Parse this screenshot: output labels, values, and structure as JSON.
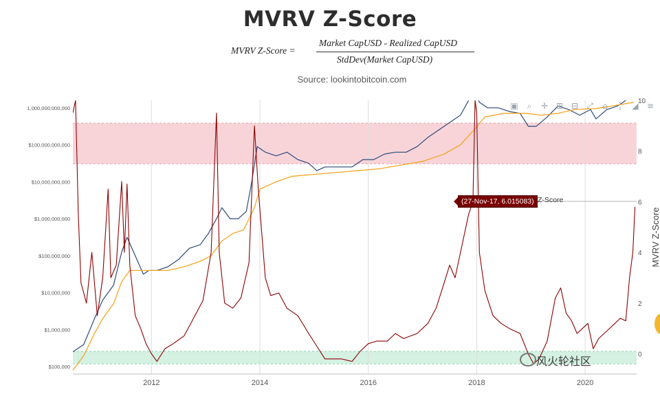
{
  "header": {
    "title": "MVRV Z-Score",
    "formula_lhs": "MVRV Z-Score  =",
    "formula_numerator": "Market Capᵤₛₑ - Realized Capᵤₛₑ",
    "formula_numerator_text": "Market CapUSD - Realized CapUSD",
    "formula_denominator_text": "StdDev(Market CapUSD)",
    "source": "Source: lookintobitcoin.com"
  },
  "toolbar": {
    "items": [
      {
        "name": "camera-icon",
        "glyph": "▣"
      },
      {
        "name": "zoom-icon",
        "glyph": "⌕"
      },
      {
        "name": "pan-icon",
        "glyph": "✛"
      },
      {
        "name": "zoom-in-icon",
        "glyph": "⊞"
      },
      {
        "name": "zoom-out-icon",
        "glyph": "⊟"
      },
      {
        "name": "autoscale-icon",
        "glyph": "⤢"
      },
      {
        "name": "reset-axes-icon",
        "glyph": "⌂"
      },
      {
        "name": "spike-lines-icon",
        "glyph": "╎"
      },
      {
        "name": "hover-compare-icon",
        "glyph": "◢"
      },
      {
        "name": "hover-closest-icon",
        "glyph": "≡"
      }
    ]
  },
  "tooltip": {
    "text": "(27-Nov-17, 6.015083)",
    "label": "Z-Score",
    "date": 2017.91,
    "value": 6.015083,
    "color": "#7a0000"
  },
  "watermark": "风火轮社区",
  "colors": {
    "market_cap": "#2b4a7a",
    "realized_cap": "#f5a623",
    "zscore": "#8b0000",
    "red_band": "#f7cdd2",
    "green_band": "#cdeedd",
    "grid": "#dddddd"
  },
  "chart_data": {
    "type": "line",
    "xlabel": "",
    "y_left_label": "",
    "y_right_label": "MVRV Z-Score",
    "x_range": [
      2010.55,
      2020.95
    ],
    "x_ticks": [
      2012,
      2014,
      2016,
      2018,
      2020
    ],
    "x_tick_labels": [
      "2012",
      "2014",
      "2016",
      "2018",
      "2020"
    ],
    "y_left_scale": "log",
    "y_left_range_log10": [
      4.8,
      12.2
    ],
    "y_left_ticks": [
      100000,
      1000000,
      10000000,
      100000000,
      1000000000,
      10000000000,
      100000000000,
      1000000000000
    ],
    "y_left_tick_labels": [
      "$100,000",
      "$1,000,000",
      "$10,000,000",
      "$100,000,000",
      "$1,000,000,000",
      "$10,000,000,000",
      "$100,000,000,000",
      "1,000,000,000,000"
    ],
    "y_right_range": [
      -0.8,
      10
    ],
    "y_right_ticks": [
      0,
      2,
      4,
      6,
      8,
      10
    ],
    "y_right_tick_labels": [
      "0",
      "2",
      "4",
      "6",
      "8",
      "10"
    ],
    "bands": [
      {
        "name": "red-zone",
        "axis": "right",
        "y0": 7.5,
        "y1": 9.1
      },
      {
        "name": "green-zone",
        "axis": "right",
        "y0": -0.4,
        "y1": 0.1
      }
    ],
    "series": [
      {
        "name": "Market Cap",
        "axis": "left",
        "points": [
          [
            2010.55,
            5.4
          ],
          [
            2010.75,
            5.6
          ],
          [
            2010.95,
            6.3
          ],
          [
            2011.1,
            6.8
          ],
          [
            2011.3,
            7.2
          ],
          [
            2011.45,
            8.1
          ],
          [
            2011.55,
            8.5
          ],
          [
            2011.7,
            8.0
          ],
          [
            2011.85,
            7.5
          ],
          [
            2011.95,
            7.6
          ],
          [
            2012.1,
            7.6
          ],
          [
            2012.3,
            7.7
          ],
          [
            2012.5,
            7.9
          ],
          [
            2012.7,
            8.2
          ],
          [
            2012.9,
            8.3
          ],
          [
            2013.05,
            8.6
          ],
          [
            2013.2,
            9.0
          ],
          [
            2013.3,
            9.3
          ],
          [
            2013.45,
            9.0
          ],
          [
            2013.6,
            9.0
          ],
          [
            2013.75,
            9.2
          ],
          [
            2013.85,
            10.0
          ],
          [
            2013.95,
            10.95
          ],
          [
            2014.1,
            10.8
          ],
          [
            2014.3,
            10.7
          ],
          [
            2014.5,
            10.8
          ],
          [
            2014.7,
            10.6
          ],
          [
            2014.9,
            10.5
          ],
          [
            2015.05,
            10.3
          ],
          [
            2015.2,
            10.4
          ],
          [
            2015.5,
            10.4
          ],
          [
            2015.7,
            10.4
          ],
          [
            2015.9,
            10.6
          ],
          [
            2016.1,
            10.6
          ],
          [
            2016.3,
            10.75
          ],
          [
            2016.5,
            10.8
          ],
          [
            2016.7,
            10.8
          ],
          [
            2016.9,
            10.95
          ],
          [
            2017.1,
            11.2
          ],
          [
            2017.3,
            11.4
          ],
          [
            2017.5,
            11.6
          ],
          [
            2017.7,
            11.8
          ],
          [
            2017.85,
            12.2
          ],
          [
            2017.95,
            12.5
          ],
          [
            2018.05,
            12.15
          ],
          [
            2018.2,
            12.0
          ],
          [
            2018.4,
            12.0
          ],
          [
            2018.6,
            11.9
          ],
          [
            2018.8,
            11.85
          ],
          [
            2018.95,
            11.5
          ],
          [
            2019.1,
            11.5
          ],
          [
            2019.3,
            11.75
          ],
          [
            2019.5,
            12.05
          ],
          [
            2019.7,
            11.95
          ],
          [
            2019.9,
            11.8
          ],
          [
            2020.1,
            11.95
          ],
          [
            2020.2,
            11.7
          ],
          [
            2020.4,
            11.95
          ],
          [
            2020.6,
            12.05
          ],
          [
            2020.75,
            12.2
          ],
          [
            2020.9,
            12.45
          ]
        ]
      },
      {
        "name": "Realized Cap",
        "axis": "left",
        "points": [
          [
            2010.55,
            4.9
          ],
          [
            2010.75,
            5.3
          ],
          [
            2010.95,
            5.9
          ],
          [
            2011.1,
            6.3
          ],
          [
            2011.3,
            6.7
          ],
          [
            2011.45,
            7.3
          ],
          [
            2011.6,
            7.6
          ],
          [
            2011.8,
            7.6
          ],
          [
            2012.0,
            7.6
          ],
          [
            2012.3,
            7.6
          ],
          [
            2012.6,
            7.7
          ],
          [
            2012.9,
            7.85
          ],
          [
            2013.1,
            8.0
          ],
          [
            2013.3,
            8.4
          ],
          [
            2013.5,
            8.6
          ],
          [
            2013.7,
            8.7
          ],
          [
            2013.9,
            9.3
          ],
          [
            2014.0,
            9.8
          ],
          [
            2014.3,
            10.0
          ],
          [
            2014.6,
            10.15
          ],
          [
            2015.0,
            10.2
          ],
          [
            2015.4,
            10.25
          ],
          [
            2015.8,
            10.3
          ],
          [
            2016.2,
            10.35
          ],
          [
            2016.6,
            10.45
          ],
          [
            2017.0,
            10.55
          ],
          [
            2017.4,
            10.75
          ],
          [
            2017.7,
            11.0
          ],
          [
            2017.95,
            11.4
          ],
          [
            2018.15,
            11.75
          ],
          [
            2018.5,
            11.85
          ],
          [
            2018.9,
            11.85
          ],
          [
            2019.2,
            11.8
          ],
          [
            2019.5,
            11.85
          ],
          [
            2019.8,
            11.95
          ],
          [
            2020.2,
            11.98
          ],
          [
            2020.5,
            12.05
          ],
          [
            2020.9,
            12.15
          ]
        ]
      },
      {
        "name": "Z-Score",
        "axis": "right",
        "points": [
          [
            2010.55,
            9.5
          ],
          [
            2010.6,
            10.0
          ],
          [
            2010.65,
            5.5
          ],
          [
            2010.7,
            2.8
          ],
          [
            2010.8,
            2.0
          ],
          [
            2010.9,
            4.0
          ],
          [
            2011.0,
            1.5
          ],
          [
            2011.1,
            3.0
          ],
          [
            2011.2,
            6.5
          ],
          [
            2011.25,
            3.0
          ],
          [
            2011.35,
            3.5
          ],
          [
            2011.45,
            6.8
          ],
          [
            2011.5,
            4.0
          ],
          [
            2011.55,
            6.7
          ],
          [
            2011.6,
            3.5
          ],
          [
            2011.7,
            1.5
          ],
          [
            2011.8,
            1.0
          ],
          [
            2011.9,
            0.4
          ],
          [
            2012.0,
            0.0
          ],
          [
            2012.1,
            -0.3
          ],
          [
            2012.25,
            0.2
          ],
          [
            2012.4,
            0.4
          ],
          [
            2012.6,
            0.7
          ],
          [
            2012.75,
            1.3
          ],
          [
            2012.95,
            2.1
          ],
          [
            2013.1,
            4.0
          ],
          [
            2013.2,
            9.5
          ],
          [
            2013.25,
            4.0
          ],
          [
            2013.35,
            2.0
          ],
          [
            2013.5,
            1.8
          ],
          [
            2013.65,
            2.2
          ],
          [
            2013.8,
            3.6
          ],
          [
            2013.9,
            9.0
          ],
          [
            2013.97,
            6.5
          ],
          [
            2014.1,
            3.0
          ],
          [
            2014.2,
            2.3
          ],
          [
            2014.35,
            2.4
          ],
          [
            2014.5,
            1.8
          ],
          [
            2014.7,
            1.5
          ],
          [
            2014.9,
            0.8
          ],
          [
            2015.05,
            0.3
          ],
          [
            2015.2,
            -0.2
          ],
          [
            2015.5,
            -0.2
          ],
          [
            2015.7,
            -0.3
          ],
          [
            2015.85,
            0.1
          ],
          [
            2016.0,
            0.4
          ],
          [
            2016.15,
            0.5
          ],
          [
            2016.35,
            0.5
          ],
          [
            2016.5,
            0.8
          ],
          [
            2016.65,
            0.6
          ],
          [
            2016.9,
            0.8
          ],
          [
            2017.1,
            1.2
          ],
          [
            2017.25,
            1.8
          ],
          [
            2017.4,
            2.8
          ],
          [
            2017.5,
            3.5
          ],
          [
            2017.6,
            3.0
          ],
          [
            2017.75,
            4.5
          ],
          [
            2017.85,
            5.5
          ],
          [
            2017.93,
            6.015083
          ],
          [
            2017.97,
            10.0
          ],
          [
            2018.0,
            9.5
          ],
          [
            2018.05,
            4.0
          ],
          [
            2018.15,
            2.5
          ],
          [
            2018.3,
            1.5
          ],
          [
            2018.45,
            1.2
          ],
          [
            2018.6,
            1.0
          ],
          [
            2018.8,
            0.8
          ],
          [
            2018.95,
            0.0
          ],
          [
            2019.05,
            -0.4
          ],
          [
            2019.15,
            -0.2
          ],
          [
            2019.3,
            0.5
          ],
          [
            2019.45,
            2.2
          ],
          [
            2019.55,
            2.6
          ],
          [
            2019.65,
            1.6
          ],
          [
            2019.75,
            1.3
          ],
          [
            2019.85,
            0.8
          ],
          [
            2019.95,
            1.0
          ],
          [
            2020.05,
            1.2
          ],
          [
            2020.15,
            0.2
          ],
          [
            2020.25,
            0.6
          ],
          [
            2020.4,
            0.9
          ],
          [
            2020.55,
            1.2
          ],
          [
            2020.65,
            1.4
          ],
          [
            2020.75,
            1.3
          ],
          [
            2020.82,
            3.0
          ],
          [
            2020.88,
            4.0
          ],
          [
            2020.92,
            5.8
          ]
        ]
      }
    ]
  }
}
